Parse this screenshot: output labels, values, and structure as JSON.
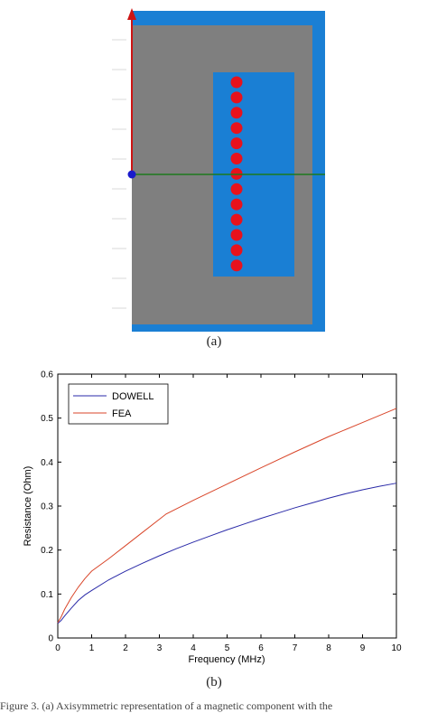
{
  "figure_a": {
    "caption": "(a)",
    "colors": {
      "copper": "#1a7fd4",
      "core": "#7f7f7f",
      "conductor": "#e8121c",
      "y_axis": "#cc1414",
      "x_axis": "#1d7a1d",
      "origin": "#1a1acc"
    },
    "conductor_count": 13
  },
  "figure_b": {
    "caption": "(b)"
  },
  "footer": {
    "text": "Figure 3. (a) Axisymmetric representation of a magnetic component with the"
  },
  "chart_data": {
    "type": "line",
    "title": "",
    "xlabel": "Frequency (MHz)",
    "ylabel": "Resistance (Ohm)",
    "xlim": [
      0,
      10
    ],
    "ylim": [
      0,
      0.6
    ],
    "xticks": [
      "0",
      "1",
      "2",
      "3",
      "4",
      "5",
      "6",
      "7",
      "8",
      "9",
      "10"
    ],
    "yticks": [
      "0",
      "0.1",
      "0.2",
      "0.3",
      "0.4",
      "0.5",
      "0.6"
    ],
    "grid": false,
    "legend_position": "top-left",
    "series": [
      {
        "name": "DOWELL",
        "color": "#2a2aa8",
        "x": [
          0,
          0.1,
          0.2,
          0.4,
          0.6,
          0.8,
          1,
          1.5,
          2,
          2.5,
          3,
          3.5,
          4,
          4.5,
          5,
          5.5,
          6,
          6.5,
          7,
          7.5,
          8,
          8.5,
          9,
          9.5,
          10
        ],
        "y": [
          0.033,
          0.04,
          0.05,
          0.068,
          0.085,
          0.098,
          0.108,
          0.132,
          0.152,
          0.17,
          0.187,
          0.203,
          0.218,
          0.232,
          0.246,
          0.259,
          0.272,
          0.284,
          0.296,
          0.307,
          0.318,
          0.328,
          0.337,
          0.345,
          0.352
        ]
      },
      {
        "name": "FEA",
        "color": "#d9462a",
        "x": [
          0,
          0.1,
          0.2,
          0.4,
          0.6,
          0.8,
          1,
          1.5,
          2,
          2.5,
          3,
          3.2,
          4,
          5,
          6,
          7,
          8,
          9,
          10
        ],
        "y": [
          0.035,
          0.048,
          0.065,
          0.092,
          0.115,
          0.135,
          0.152,
          0.18,
          0.21,
          0.24,
          0.27,
          0.282,
          0.313,
          0.35,
          0.387,
          0.423,
          0.458,
          0.49,
          0.522
        ]
      }
    ]
  }
}
